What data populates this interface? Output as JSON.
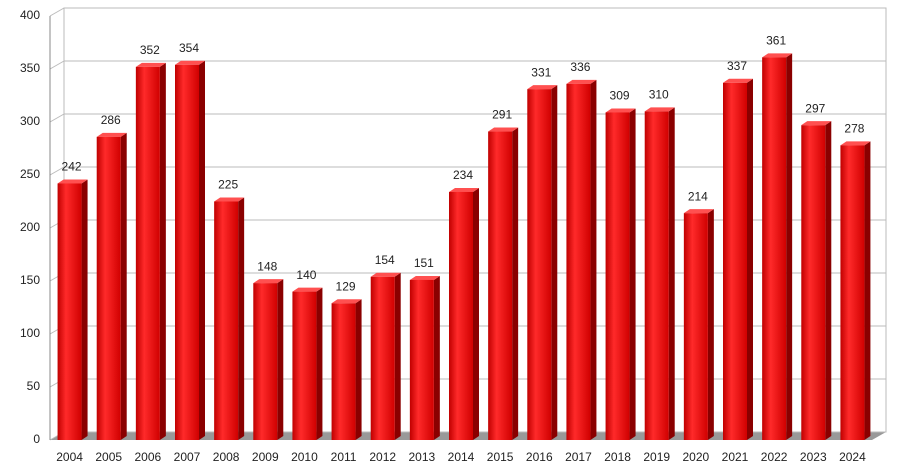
{
  "chart_data": {
    "type": "bar",
    "categories": [
      "2004",
      "2005",
      "2006",
      "2007",
      "2008",
      "2009",
      "2010",
      "2011",
      "2012",
      "2013",
      "2014",
      "2015",
      "2016",
      "2017",
      "2018",
      "2019",
      "2020",
      "2021",
      "2022",
      "2023",
      "2024"
    ],
    "values": [
      242,
      286,
      352,
      354,
      225,
      148,
      140,
      129,
      154,
      151,
      234,
      291,
      331,
      336,
      309,
      310,
      214,
      337,
      361,
      297,
      278
    ],
    "color": "#ee0000",
    "ylim": [
      0,
      400
    ],
    "yticks": [
      0,
      50,
      100,
      150,
      200,
      250,
      300,
      350,
      400
    ],
    "grid": true
  }
}
